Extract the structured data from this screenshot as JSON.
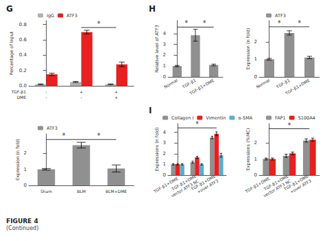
{
  "title": "FIGURE 4",
  "subtitle": "(Continued)",
  "chart_data": [
    {
      "type": "bar",
      "title": "G",
      "ylabel": "Percentage of Input",
      "categories": [
        "-\n-",
        "+\n-",
        "+\n+"
      ],
      "series": [
        {
          "name": "IgG",
          "color": "#b0b0b0",
          "values": [
            0.02,
            0.05,
            0.02
          ],
          "errors": [
            0.005,
            0.008,
            0.005
          ]
        },
        {
          "name": "ATF3",
          "color": "#e82020",
          "values": [
            0.15,
            0.7,
            0.28
          ],
          "errors": [
            0.015,
            0.025,
            0.03
          ]
        }
      ],
      "ylim": [
        0,
        0.85
      ],
      "yticks": [
        {
          "value": 0.0,
          "label": "0.0"
        },
        0.2,
        0.4,
        0.6,
        0.8
      ],
      "grid": false,
      "legend": "upper left",
      "annotations": [
        {
          "text": "TGF-β1"
        },
        {
          "text": "DME"
        },
        {
          "text": "*",
          "from": "+\n-",
          "to": "+\n+",
          "y": 0.76
        }
      ]
    },
    {
      "type": "bar",
      "ylabel": "Expression (n fold)",
      "categories": [
        "Sham",
        "BLM",
        "BLM+DME"
      ],
      "series": [
        {
          "name": "ATF3",
          "color": "#909090",
          "values": [
            1.0,
            2.5,
            1.05
          ],
          "errors": [
            0.05,
            0.18,
            0.22
          ]
        }
      ],
      "ylim": [
        0,
        3.2
      ],
      "yticks": [
        0,
        1,
        2
      ],
      "grid": false,
      "legend": "upper left",
      "annotations": [
        {
          "text": "*",
          "from": "Sham",
          "to": "BLM",
          "y": 2.85
        },
        {
          "text": "*",
          "from": "BLM",
          "to": "BLM+DME",
          "y": 2.85
        }
      ]
    },
    {
      "type": "bar",
      "title": "H",
      "ylabel": "Relative level of ATF3",
      "categories": [
        "Normal",
        "TGF-β1",
        "TGF-β1+DME"
      ],
      "series": [
        {
          "color": "#909090",
          "values": [
            1.0,
            3.85,
            1.1
          ],
          "errors": [
            0.06,
            0.55,
            0.08
          ]
        }
      ],
      "ylim": [
        0,
        5.2
      ],
      "yticks": [
        0,
        1,
        2,
        3,
        4
      ],
      "grid": false,
      "annotations": [
        {
          "text": "*",
          "from": "Normal",
          "to": "TGF-β1",
          "y": 4.6
        },
        {
          "text": "*",
          "from": "TGF-β1",
          "to": "TGF-β1+DME",
          "y": 4.6
        }
      ]
    },
    {
      "type": "bar",
      "ylabel": "Expression (n fold)",
      "categories": [
        "Normal",
        "TGF-β1",
        "TGF-β1+DME"
      ],
      "series": [
        {
          "name": "ATF3",
          "color": "#909090",
          "values": [
            1.0,
            2.5,
            1.1
          ],
          "errors": [
            0.05,
            0.12,
            0.07
          ]
        }
      ],
      "ylim": [
        0,
        3.2
      ],
      "yticks": [
        0,
        1,
        2
      ],
      "grid": false,
      "legend": "upper left",
      "annotations": [
        {
          "text": "*",
          "from": "Normal",
          "to": "TGF-β1",
          "y": 2.85
        },
        {
          "text": "*",
          "from": "TGF-β1",
          "to": "TGF-β1+DME",
          "y": 2.85
        }
      ]
    },
    {
      "type": "bar",
      "title": "I",
      "ylabel": "Expressions (n fold)",
      "categories": [
        "TGF-β1+DME",
        "TGF-β1+DME\nvector ATF3 NC",
        "TGF-β1+DME\n+over ATF3"
      ],
      "series": [
        {
          "name": "Collagen I",
          "color": "#909090",
          "values": [
            1.0,
            1.2,
            3.5
          ],
          "errors": [
            0.06,
            0.1,
            0.12
          ]
        },
        {
          "name": "Vimentin",
          "color": "#e82020",
          "values": [
            1.0,
            1.65,
            3.85
          ],
          "errors": [
            0.06,
            0.1,
            0.18
          ]
        },
        {
          "name": "α-SMA",
          "color": "#5aaecc",
          "values": [
            1.0,
            1.0,
            1.85
          ],
          "errors": [
            0.06,
            0.06,
            0.18
          ]
        }
      ],
      "ylim": [
        0,
        4.8
      ],
      "yticks": [
        0,
        1,
        2,
        3,
        4
      ],
      "grid": false,
      "legend": "upper left",
      "annotations": [
        {
          "text": "*",
          "from": "TGF-β1+DME",
          "to": "TGF-β1+DME\n+over ATF3",
          "y": 4.4
        }
      ]
    },
    {
      "type": "bar",
      "ylabel": "Expressions (%MC)",
      "categories": [
        "TGF-β1+DME",
        "TGF-β1+DME\nvector ATF3 NC",
        "TGF-β1+DME\n+over ATF3"
      ],
      "series": [
        {
          "name": "FAP1",
          "color": "#909090",
          "values": [
            1.0,
            1.2,
            2.15
          ],
          "errors": [
            0.06,
            0.1,
            0.1
          ]
        },
        {
          "name": "S100A4",
          "color": "#e82020",
          "values": [
            1.0,
            1.35,
            2.2
          ],
          "errors": [
            0.06,
            0.08,
            0.1
          ]
        }
      ],
      "ylim": [
        0,
        3.2
      ],
      "yticks": [
        0,
        1,
        2
      ],
      "grid": false,
      "legend": "upper left",
      "annotations": [
        {
          "text": "*",
          "from": "TGF-β1+DME",
          "to": "TGF-β1+DME\n+over ATF3",
          "y": 2.88
        }
      ]
    }
  ]
}
